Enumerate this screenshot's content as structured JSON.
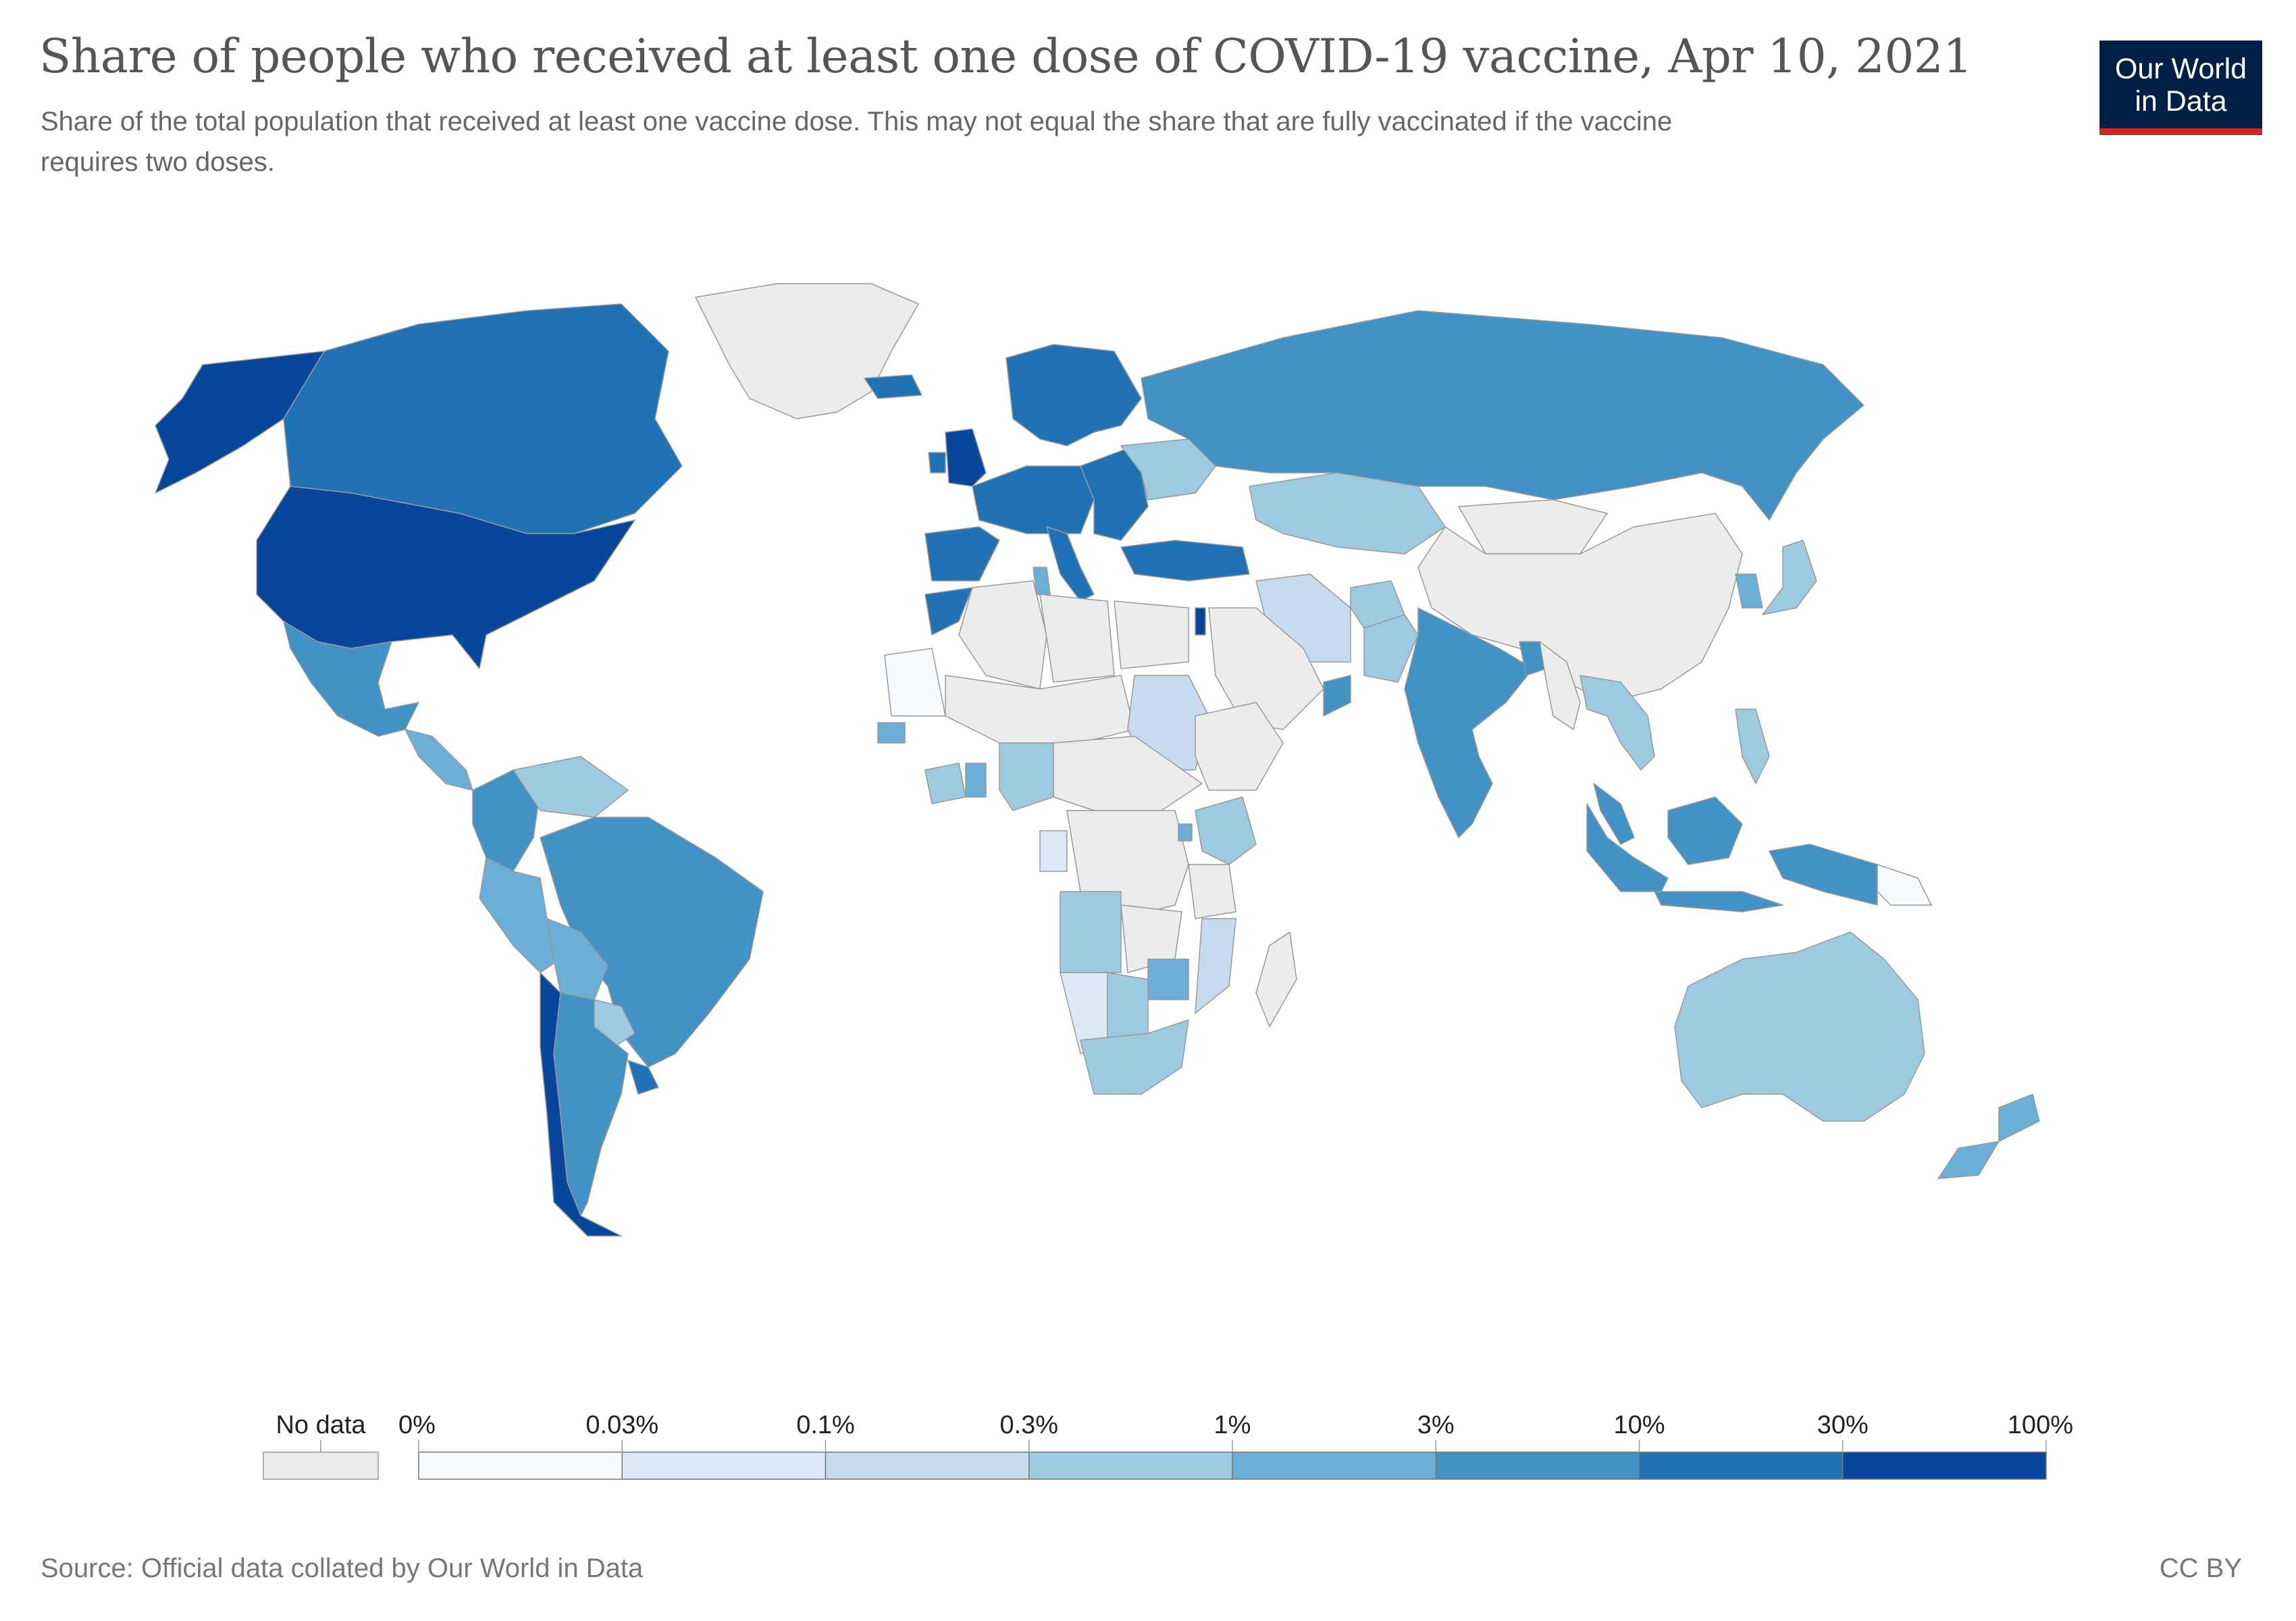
{
  "title": "Share of people who received at least one dose of COVID-19 vaccine, Apr 10, 2021",
  "subtitle": "Share of the total population that received at least one vaccine dose. This may not equal the share that are fully vaccinated if the vaccine requires two doses.",
  "logo": {
    "line1": "Our World",
    "line2": "in Data"
  },
  "source": "Source: Official data collated by Our World in Data",
  "license": "CC BY",
  "colors": {
    "no_data": "#ececec",
    "land_stroke": "#999999",
    "bins": [
      "#f7fbff",
      "#dde9f6",
      "#c7dbef",
      "#9ecae1",
      "#6baed6",
      "#4292c6",
      "#2171b5",
      "#08469b"
    ]
  },
  "legend": {
    "no_data_label": "No data",
    "ticks": [
      "0%",
      "0.03%",
      "0.1%",
      "0.3%",
      "1%",
      "3%",
      "10%",
      "30%",
      "100%"
    ]
  },
  "regions": [
    {
      "name": "Greenland",
      "bin": -1
    },
    {
      "name": "Alaska",
      "bin": 7
    },
    {
      "name": "Canada",
      "bin": 6
    },
    {
      "name": "United States",
      "bin": 7
    },
    {
      "name": "Mexico",
      "bin": 5
    },
    {
      "name": "Central America",
      "bin": 4
    },
    {
      "name": "Colombia",
      "bin": 5
    },
    {
      "name": "Venezuela",
      "bin": 3
    },
    {
      "name": "Brazil",
      "bin": 5
    },
    {
      "name": "Peru",
      "bin": 4
    },
    {
      "name": "Bolivia",
      "bin": 4
    },
    {
      "name": "Paraguay",
      "bin": 3
    },
    {
      "name": "Argentina",
      "bin": 5
    },
    {
      "name": "Chile",
      "bin": 7
    },
    {
      "name": "Uruguay",
      "bin": 6
    },
    {
      "name": "Iceland",
      "bin": 6
    },
    {
      "name": "United Kingdom",
      "bin": 7
    },
    {
      "name": "Ireland",
      "bin": 6
    },
    {
      "name": "Scandinavia",
      "bin": 6
    },
    {
      "name": "Western Europe",
      "bin": 6
    },
    {
      "name": "Iberia",
      "bin": 6
    },
    {
      "name": "Italy",
      "bin": 6
    },
    {
      "name": "Eastern Europe",
      "bin": 6
    },
    {
      "name": "Ukraine",
      "bin": 3
    },
    {
      "name": "Turkey",
      "bin": 6
    },
    {
      "name": "Russia",
      "bin": 5
    },
    {
      "name": "Kazakhstan",
      "bin": 3
    },
    {
      "name": "Mongolia",
      "bin": -1
    },
    {
      "name": "China",
      "bin": -1
    },
    {
      "name": "Iran",
      "bin": 2
    },
    {
      "name": "Afghanistan",
      "bin": 3
    },
    {
      "name": "Pakistan",
      "bin": 3
    },
    {
      "name": "India",
      "bin": 5
    },
    {
      "name": "Bangladesh",
      "bin": 5
    },
    {
      "name": "Myanmar",
      "bin": -1
    },
    {
      "name": "Southeast Asia",
      "bin": 3
    },
    {
      "name": "Malaysia",
      "bin": 5
    },
    {
      "name": "Indonesia",
      "bin": 5
    },
    {
      "name": "Philippines",
      "bin": 3
    },
    {
      "name": "Korea",
      "bin": 4
    },
    {
      "name": "Japan",
      "bin": 3
    },
    {
      "name": "Papua New Guinea",
      "bin": 0
    },
    {
      "name": "Australia",
      "bin": 3
    },
    {
      "name": "New Zealand",
      "bin": 4
    },
    {
      "name": "Saudi Arabia",
      "bin": -1
    },
    {
      "name": "Oman",
      "bin": 5
    },
    {
      "name": "Morocco",
      "bin": 6
    },
    {
      "name": "Algeria",
      "bin": -1
    },
    {
      "name": "Libya",
      "bin": -1
    },
    {
      "name": "Egypt",
      "bin": -1
    },
    {
      "name": "Israel",
      "bin": 7
    },
    {
      "name": "Tunisia",
      "bin": 4
    },
    {
      "name": "Mauritania",
      "bin": 0
    },
    {
      "name": "Sahel",
      "bin": -1
    },
    {
      "name": "Sudan",
      "bin": 2
    },
    {
      "name": "Ethiopia",
      "bin": -1
    },
    {
      "name": "Senegal",
      "bin": 4
    },
    {
      "name": "Ivory Coast",
      "bin": 3
    },
    {
      "name": "Ghana",
      "bin": 4
    },
    {
      "name": "Nigeria",
      "bin": 3
    },
    {
      "name": "Central Africa",
      "bin": -1
    },
    {
      "name": "Congo Rep",
      "bin": 1
    },
    {
      "name": "DR Congo",
      "bin": -1
    },
    {
      "name": "Kenya",
      "bin": 3
    },
    {
      "name": "Rwanda",
      "bin": 4
    },
    {
      "name": "Tanzania",
      "bin": -1
    },
    {
      "name": "Angola",
      "bin": 3
    },
    {
      "name": "Zambia",
      "bin": -1
    },
    {
      "name": "Mozambique",
      "bin": 2
    },
    {
      "name": "Namibia",
      "bin": 1
    },
    {
      "name": "Botswana",
      "bin": 3
    },
    {
      "name": "Zimbabwe",
      "bin": 4
    },
    {
      "name": "South Africa",
      "bin": 3
    },
    {
      "name": "Madagascar",
      "bin": -1
    }
  ]
}
